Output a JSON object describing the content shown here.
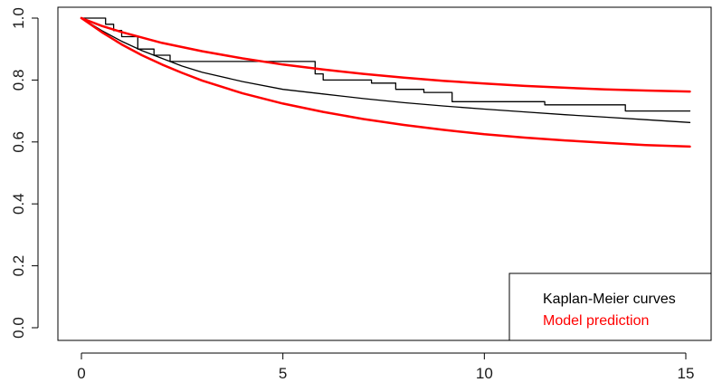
{
  "chart_data": {
    "type": "line",
    "title": "",
    "xlabel": "",
    "ylabel": "",
    "xlim": [
      0,
      15
    ],
    "ylim": [
      0,
      1
    ],
    "x_ticks": [
      0,
      5,
      10,
      15
    ],
    "x_tick_labels": [
      "0",
      "5",
      "10",
      "15"
    ],
    "y_ticks": [
      0.0,
      0.2,
      0.4,
      0.6,
      0.8,
      1.0
    ],
    "y_tick_labels": [
      "0.0",
      "0.2",
      "0.4",
      "0.6",
      "0.8",
      "1.0"
    ],
    "grid": false,
    "legend": {
      "position": "bottom-right",
      "entries": [
        {
          "label": "Kaplan-Meier curves",
          "color": "#000000"
        },
        {
          "label": "Model prediction",
          "color": "#ff0000"
        }
      ]
    },
    "series": [
      {
        "group": "Kaplan-Meier curves",
        "color": "#000000",
        "step": true,
        "x": [
          0,
          0.6,
          0.8,
          1.0,
          1.4,
          1.8,
          2.2,
          2.6,
          3.5,
          5.2,
          5.8,
          6.0,
          6.8,
          7.2,
          7.8,
          8.5,
          9.2,
          10.0,
          11.5,
          12.3,
          13.5,
          15.1
        ],
        "y": [
          1.0,
          0.98,
          0.96,
          0.94,
          0.9,
          0.88,
          0.86,
          0.86,
          0.86,
          0.86,
          0.82,
          0.8,
          0.8,
          0.79,
          0.77,
          0.76,
          0.73,
          0.73,
          0.72,
          0.72,
          0.7,
          0.7
        ]
      },
      {
        "group": "Kaplan-Meier curves",
        "color": "#000000",
        "step": false,
        "x": [
          0,
          0.5,
          1.0,
          1.5,
          2.0,
          2.5,
          3.0,
          4.0,
          5.0,
          6.0,
          7.0,
          8.0,
          9.0,
          10.0,
          11.0,
          12.0,
          13.0,
          14.0,
          15.1
        ],
        "y": [
          1.0,
          0.96,
          0.925,
          0.895,
          0.87,
          0.845,
          0.825,
          0.795,
          0.77,
          0.755,
          0.74,
          0.727,
          0.716,
          0.706,
          0.697,
          0.688,
          0.68,
          0.672,
          0.663
        ]
      },
      {
        "group": "Model prediction",
        "color": "#ff0000",
        "step": false,
        "x": [
          0,
          0.5,
          1.0,
          2.0,
          3.0,
          4.0,
          5.0,
          6.0,
          7.0,
          8.0,
          9.0,
          10.0,
          11.0,
          12.0,
          13.0,
          14.0,
          15.1
        ],
        "y": [
          1.0,
          0.975,
          0.955,
          0.92,
          0.893,
          0.87,
          0.85,
          0.834,
          0.82,
          0.808,
          0.797,
          0.789,
          0.781,
          0.775,
          0.77,
          0.766,
          0.763
        ]
      },
      {
        "group": "Model prediction",
        "color": "#ff0000",
        "step": false,
        "x": [
          0,
          0.5,
          1.0,
          1.5,
          2.0,
          2.5,
          3.0,
          4.0,
          5.0,
          6.0,
          7.0,
          8.0,
          9.0,
          10.0,
          11.0,
          12.0,
          13.0,
          14.0,
          15.1
        ],
        "y": [
          1.0,
          0.955,
          0.915,
          0.88,
          0.85,
          0.823,
          0.798,
          0.757,
          0.724,
          0.697,
          0.674,
          0.655,
          0.639,
          0.625,
          0.614,
          0.605,
          0.597,
          0.59,
          0.585
        ]
      }
    ]
  }
}
